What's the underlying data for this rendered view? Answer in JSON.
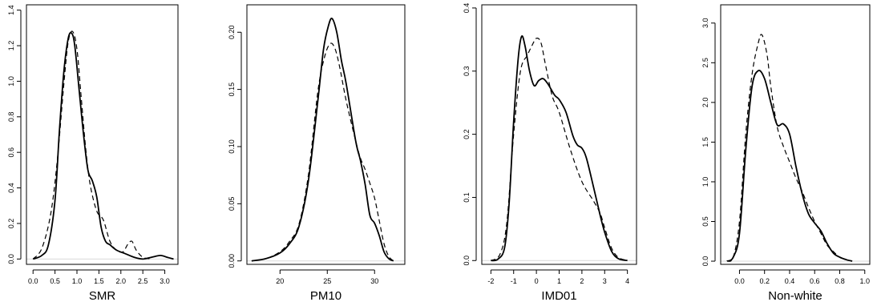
{
  "chart_data": [
    {
      "type": "line",
      "xlabel": "SMR",
      "xlim": [
        -0.15,
        3.3
      ],
      "ylim": [
        -0.03,
        1.43
      ],
      "xticks": [
        0.0,
        0.5,
        1.0,
        1.5,
        2.0,
        2.5,
        3.0
      ],
      "xtick_labels": [
        "0.0",
        "0.5",
        "1.0",
        "1.5",
        "2.0",
        "2.5",
        "3.0"
      ],
      "yticks": [
        0.0,
        0.2,
        0.4,
        0.6,
        0.8,
        1.0,
        1.2,
        1.4
      ],
      "ytick_labels": [
        "0.0",
        "0.2",
        "0.4",
        "0.6",
        "0.8",
        "1.0",
        "1.2",
        "1.4"
      ],
      "series": [
        {
          "style": "solid",
          "x": [
            0.0,
            0.2,
            0.35,
            0.5,
            0.6,
            0.7,
            0.8,
            0.88,
            0.95,
            1.05,
            1.15,
            1.25,
            1.35,
            1.45,
            1.55,
            1.65,
            1.75,
            1.9,
            2.1,
            2.3,
            2.5,
            2.7,
            2.9,
            3.05,
            3.2
          ],
          "y": [
            0.0,
            0.02,
            0.08,
            0.33,
            0.72,
            1.05,
            1.24,
            1.27,
            1.2,
            0.95,
            0.7,
            0.5,
            0.44,
            0.35,
            0.18,
            0.1,
            0.08,
            0.05,
            0.03,
            0.01,
            0.0,
            0.01,
            0.02,
            0.01,
            0.0
          ]
        },
        {
          "style": "dashed",
          "x": [
            0.0,
            0.2,
            0.4,
            0.55,
            0.7,
            0.8,
            0.9,
            1.0,
            1.1,
            1.2,
            1.3,
            1.45,
            1.6,
            1.75,
            1.9,
            2.05,
            2.15,
            2.25,
            2.35,
            2.5,
            2.7
          ],
          "y": [
            0.0,
            0.06,
            0.25,
            0.55,
            0.98,
            1.22,
            1.28,
            1.18,
            0.9,
            0.62,
            0.42,
            0.27,
            0.22,
            0.1,
            0.05,
            0.04,
            0.08,
            0.1,
            0.05,
            0.01,
            0.0
          ]
        }
      ]
    },
    {
      "type": "line",
      "xlabel": "PM10",
      "xlim": [
        16.5,
        33.2
      ],
      "ylim": [
        -0.003,
        0.224
      ],
      "xticks": [
        20,
        25,
        30
      ],
      "xtick_labels": [
        "20",
        "25",
        "30"
      ],
      "yticks": [
        0.0,
        0.05,
        0.1,
        0.15,
        0.2
      ],
      "ytick_labels": [
        "0.00",
        "0.05",
        "0.10",
        "0.15",
        "0.20"
      ],
      "series": [
        {
          "style": "solid",
          "x": [
            17.0,
            18.5,
            20.0,
            21.0,
            22.0,
            23.0,
            24.0,
            24.6,
            25.1,
            25.5,
            26.0,
            26.5,
            27.0,
            28.0,
            28.5,
            29.0,
            29.5,
            30.0,
            30.5,
            31.0,
            31.5,
            32.0
          ],
          "y": [
            0.0,
            0.002,
            0.007,
            0.015,
            0.03,
            0.07,
            0.14,
            0.185,
            0.205,
            0.212,
            0.2,
            0.175,
            0.155,
            0.105,
            0.088,
            0.067,
            0.04,
            0.033,
            0.022,
            0.008,
            0.002,
            0.0
          ]
        },
        {
          "style": "dashed",
          "x": [
            17.0,
            18.5,
            20.0,
            21.0,
            22.0,
            23.0,
            24.0,
            24.7,
            25.3,
            25.8,
            26.3,
            27.0,
            28.0,
            28.5,
            29.0,
            29.5,
            30.0,
            30.5,
            31.0,
            31.5,
            32.0
          ],
          "y": [
            0.0,
            0.002,
            0.008,
            0.017,
            0.032,
            0.075,
            0.148,
            0.178,
            0.19,
            0.186,
            0.17,
            0.14,
            0.105,
            0.09,
            0.08,
            0.068,
            0.055,
            0.035,
            0.015,
            0.004,
            0.0
          ]
        }
      ]
    },
    {
      "type": "line",
      "xlabel": "IMD01",
      "xlim": [
        -2.4,
        4.4
      ],
      "ylim": [
        -0.006,
        0.405
      ],
      "xticks": [
        -2,
        -1,
        0,
        1,
        2,
        3,
        4
      ],
      "xtick_labels": [
        "-2",
        "-1",
        "0",
        "1",
        "2",
        "3",
        "4"
      ],
      "yticks": [
        0.0,
        0.1,
        0.2,
        0.3,
        0.4
      ],
      "ytick_labels": [
        "0.0",
        "0.1",
        "0.2",
        "0.3",
        "0.4"
      ],
      "series": [
        {
          "style": "solid",
          "x": [
            -2.0,
            -1.7,
            -1.4,
            -1.2,
            -1.0,
            -0.8,
            -0.65,
            -0.5,
            -0.3,
            -0.1,
            0.1,
            0.3,
            0.5,
            0.8,
            1.0,
            1.3,
            1.6,
            1.8,
            2.0,
            2.2,
            2.5,
            2.8,
            3.0,
            3.3,
            3.6,
            4.0
          ],
          "y": [
            0.0,
            0.002,
            0.02,
            0.09,
            0.22,
            0.32,
            0.355,
            0.34,
            0.3,
            0.277,
            0.285,
            0.288,
            0.28,
            0.262,
            0.255,
            0.235,
            0.198,
            0.183,
            0.178,
            0.162,
            0.118,
            0.072,
            0.045,
            0.015,
            0.003,
            0.0
          ]
        },
        {
          "style": "dashed",
          "x": [
            -2.0,
            -1.6,
            -1.3,
            -1.0,
            -0.7,
            -0.4,
            -0.2,
            0.0,
            0.2,
            0.4,
            0.7,
            1.0,
            1.5,
            2.0,
            2.5,
            2.8,
            3.0,
            3.3,
            3.6,
            4.0
          ],
          "y": [
            0.0,
            0.01,
            0.06,
            0.2,
            0.3,
            0.325,
            0.34,
            0.352,
            0.345,
            0.31,
            0.26,
            0.235,
            0.175,
            0.125,
            0.095,
            0.075,
            0.052,
            0.02,
            0.005,
            0.0
          ]
        }
      ]
    },
    {
      "type": "line",
      "xlabel": "Non-white",
      "xlim": [
        -0.15,
        1.04
      ],
      "ylim": [
        -0.04,
        3.23
      ],
      "xticks": [
        0.0,
        0.2,
        0.4,
        0.6,
        0.8,
        1.0
      ],
      "xtick_labels": [
        "0.0",
        "0.2",
        "0.4",
        "0.6",
        "0.8",
        "1.0"
      ],
      "yticks": [
        0.0,
        0.5,
        1.0,
        1.5,
        2.0,
        2.5,
        3.0
      ],
      "ytick_labels": [
        "0.0",
        "0.5",
        "1.0",
        "1.5",
        "2.0",
        "2.5",
        "3.0"
      ],
      "series": [
        {
          "style": "solid",
          "x": [
            -0.1,
            -0.05,
            0.0,
            0.05,
            0.1,
            0.15,
            0.2,
            0.25,
            0.3,
            0.35,
            0.4,
            0.45,
            0.5,
            0.55,
            0.6,
            0.65,
            0.7,
            0.75,
            0.8,
            0.85,
            0.9
          ],
          "y": [
            0.0,
            0.05,
            0.35,
            1.4,
            2.2,
            2.4,
            2.3,
            2.0,
            1.72,
            1.73,
            1.6,
            1.2,
            0.85,
            0.6,
            0.48,
            0.38,
            0.22,
            0.1,
            0.05,
            0.02,
            0.0
          ]
        },
        {
          "style": "dashed",
          "x": [
            -0.1,
            -0.05,
            0.0,
            0.05,
            0.1,
            0.15,
            0.18,
            0.22,
            0.25,
            0.3,
            0.35,
            0.4,
            0.45,
            0.5,
            0.55,
            0.6,
            0.65,
            0.7,
            0.75,
            0.8,
            0.85,
            0.9
          ],
          "y": [
            0.0,
            0.05,
            0.5,
            1.6,
            2.35,
            2.75,
            2.85,
            2.6,
            2.2,
            1.7,
            1.45,
            1.25,
            1.05,
            0.88,
            0.68,
            0.5,
            0.35,
            0.2,
            0.12,
            0.05,
            0.02,
            0.0
          ]
        }
      ]
    }
  ]
}
